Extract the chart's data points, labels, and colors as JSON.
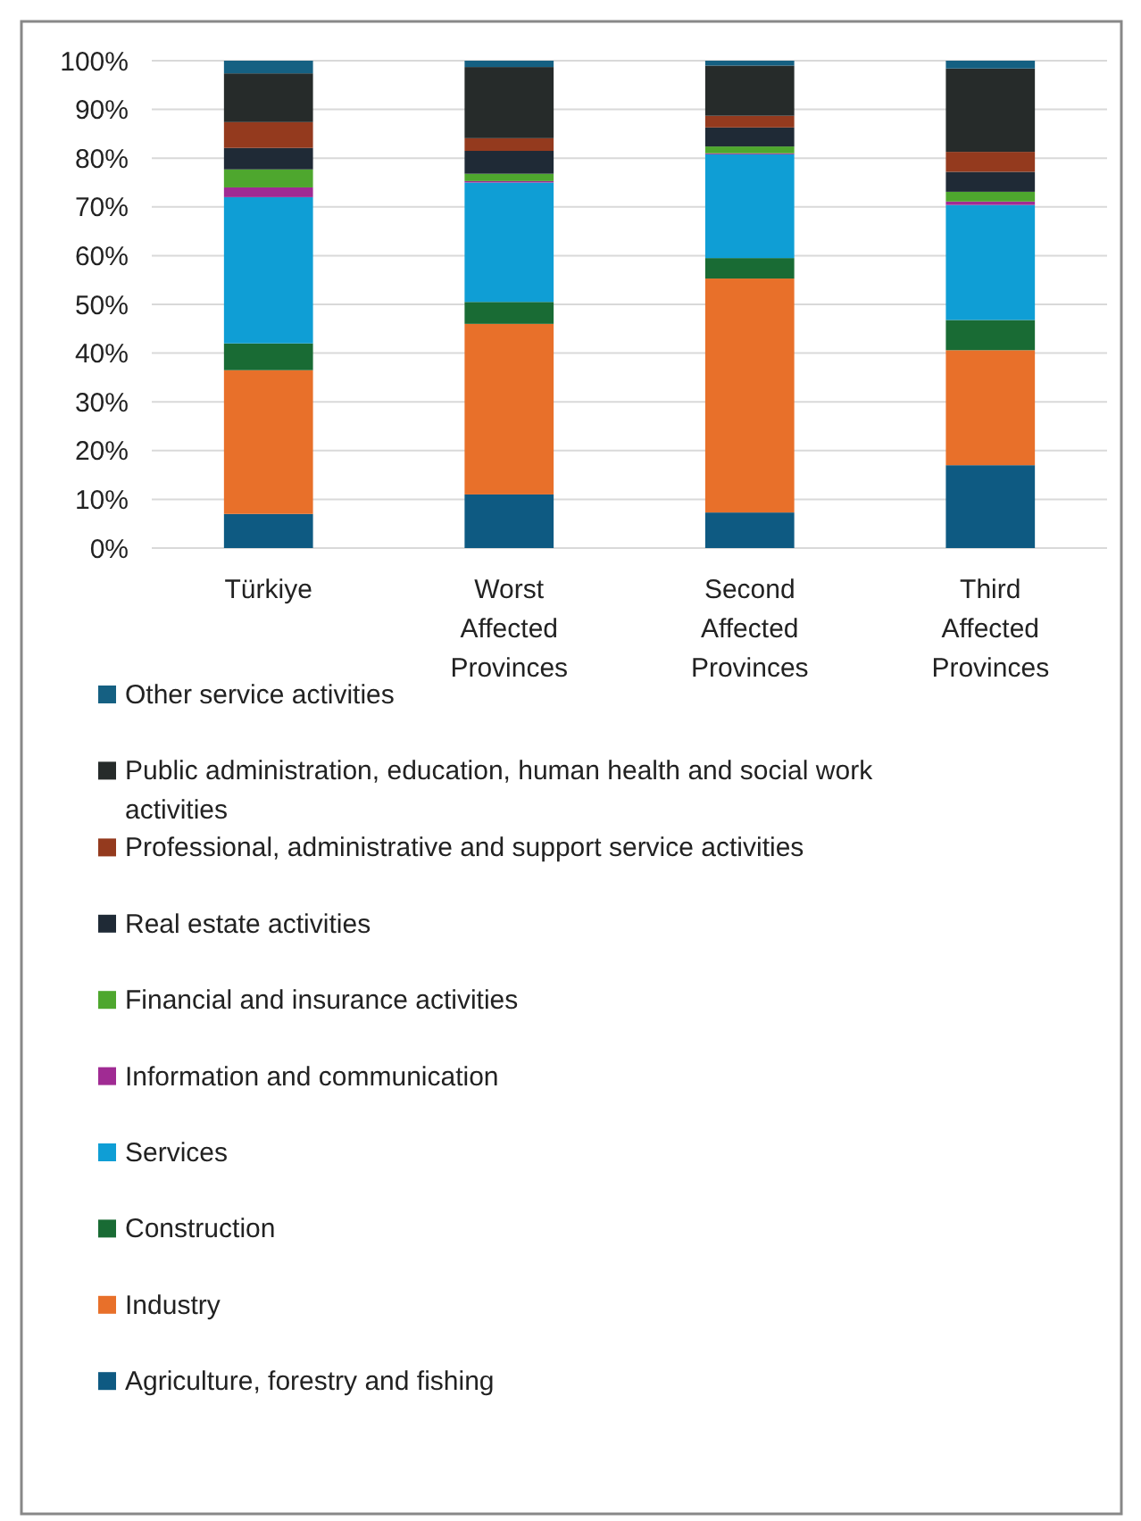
{
  "chart_data": {
    "type": "bar",
    "stacked": true,
    "categories": [
      "Türkiye",
      "Worst Affected Provinces",
      "Second Affected Provinces",
      "Third Affected Provinces"
    ],
    "series": [
      {
        "name": "Agriculture, forestry and fishing",
        "color": "#0e5a82",
        "values": [
          7,
          11,
          7.3,
          17
        ]
      },
      {
        "name": "Industry",
        "color": "#e8702a",
        "values": [
          29.5,
          35,
          48,
          23.6
        ]
      },
      {
        "name": "Construction",
        "color": "#196b34",
        "values": [
          5.5,
          4.5,
          4.2,
          6.2
        ]
      },
      {
        "name": "Services",
        "color": "#0f9ed5",
        "values": [
          30,
          24.5,
          21.3,
          23.6
        ]
      },
      {
        "name": "Information and communication",
        "color": "#a02b93",
        "values": [
          2,
          0.3,
          0.2,
          0.7
        ]
      },
      {
        "name": "Financial and insurance activities",
        "color": "#4ea72e",
        "values": [
          3.7,
          1.5,
          1.4,
          2
        ]
      },
      {
        "name": "Real estate activities",
        "color": "#1f2a36",
        "values": [
          4.4,
          4.7,
          3.9,
          4.1
        ]
      },
      {
        "name": "Professional, administrative and support service activities",
        "color": "#943a1e",
        "values": [
          5.3,
          2.6,
          2.4,
          4.1
        ]
      },
      {
        "name": "Public administration, education, human health and social work activities",
        "color": "#262b2a",
        "values": [
          10,
          14.6,
          10.3,
          17.1
        ]
      },
      {
        "name": "Other service activities",
        "color": "#156082",
        "values": [
          2.6,
          1.3,
          1,
          1.6
        ]
      }
    ],
    "ylim": [
      0,
      100
    ],
    "yticks": [
      {
        "value": 0,
        "label": "0%"
      },
      {
        "value": 10,
        "label": "10%"
      },
      {
        "value": 20,
        "label": "20%"
      },
      {
        "value": 30,
        "label": "30%"
      },
      {
        "value": 40,
        "label": "40%"
      },
      {
        "value": 50,
        "label": "50%"
      },
      {
        "value": 60,
        "label": "60%"
      },
      {
        "value": 70,
        "label": "70%"
      },
      {
        "value": 80,
        "label": "80%"
      },
      {
        "value": 90,
        "label": "90%"
      },
      {
        "value": 100,
        "label": "100%"
      }
    ],
    "grid": "y",
    "legend": "bottom"
  }
}
